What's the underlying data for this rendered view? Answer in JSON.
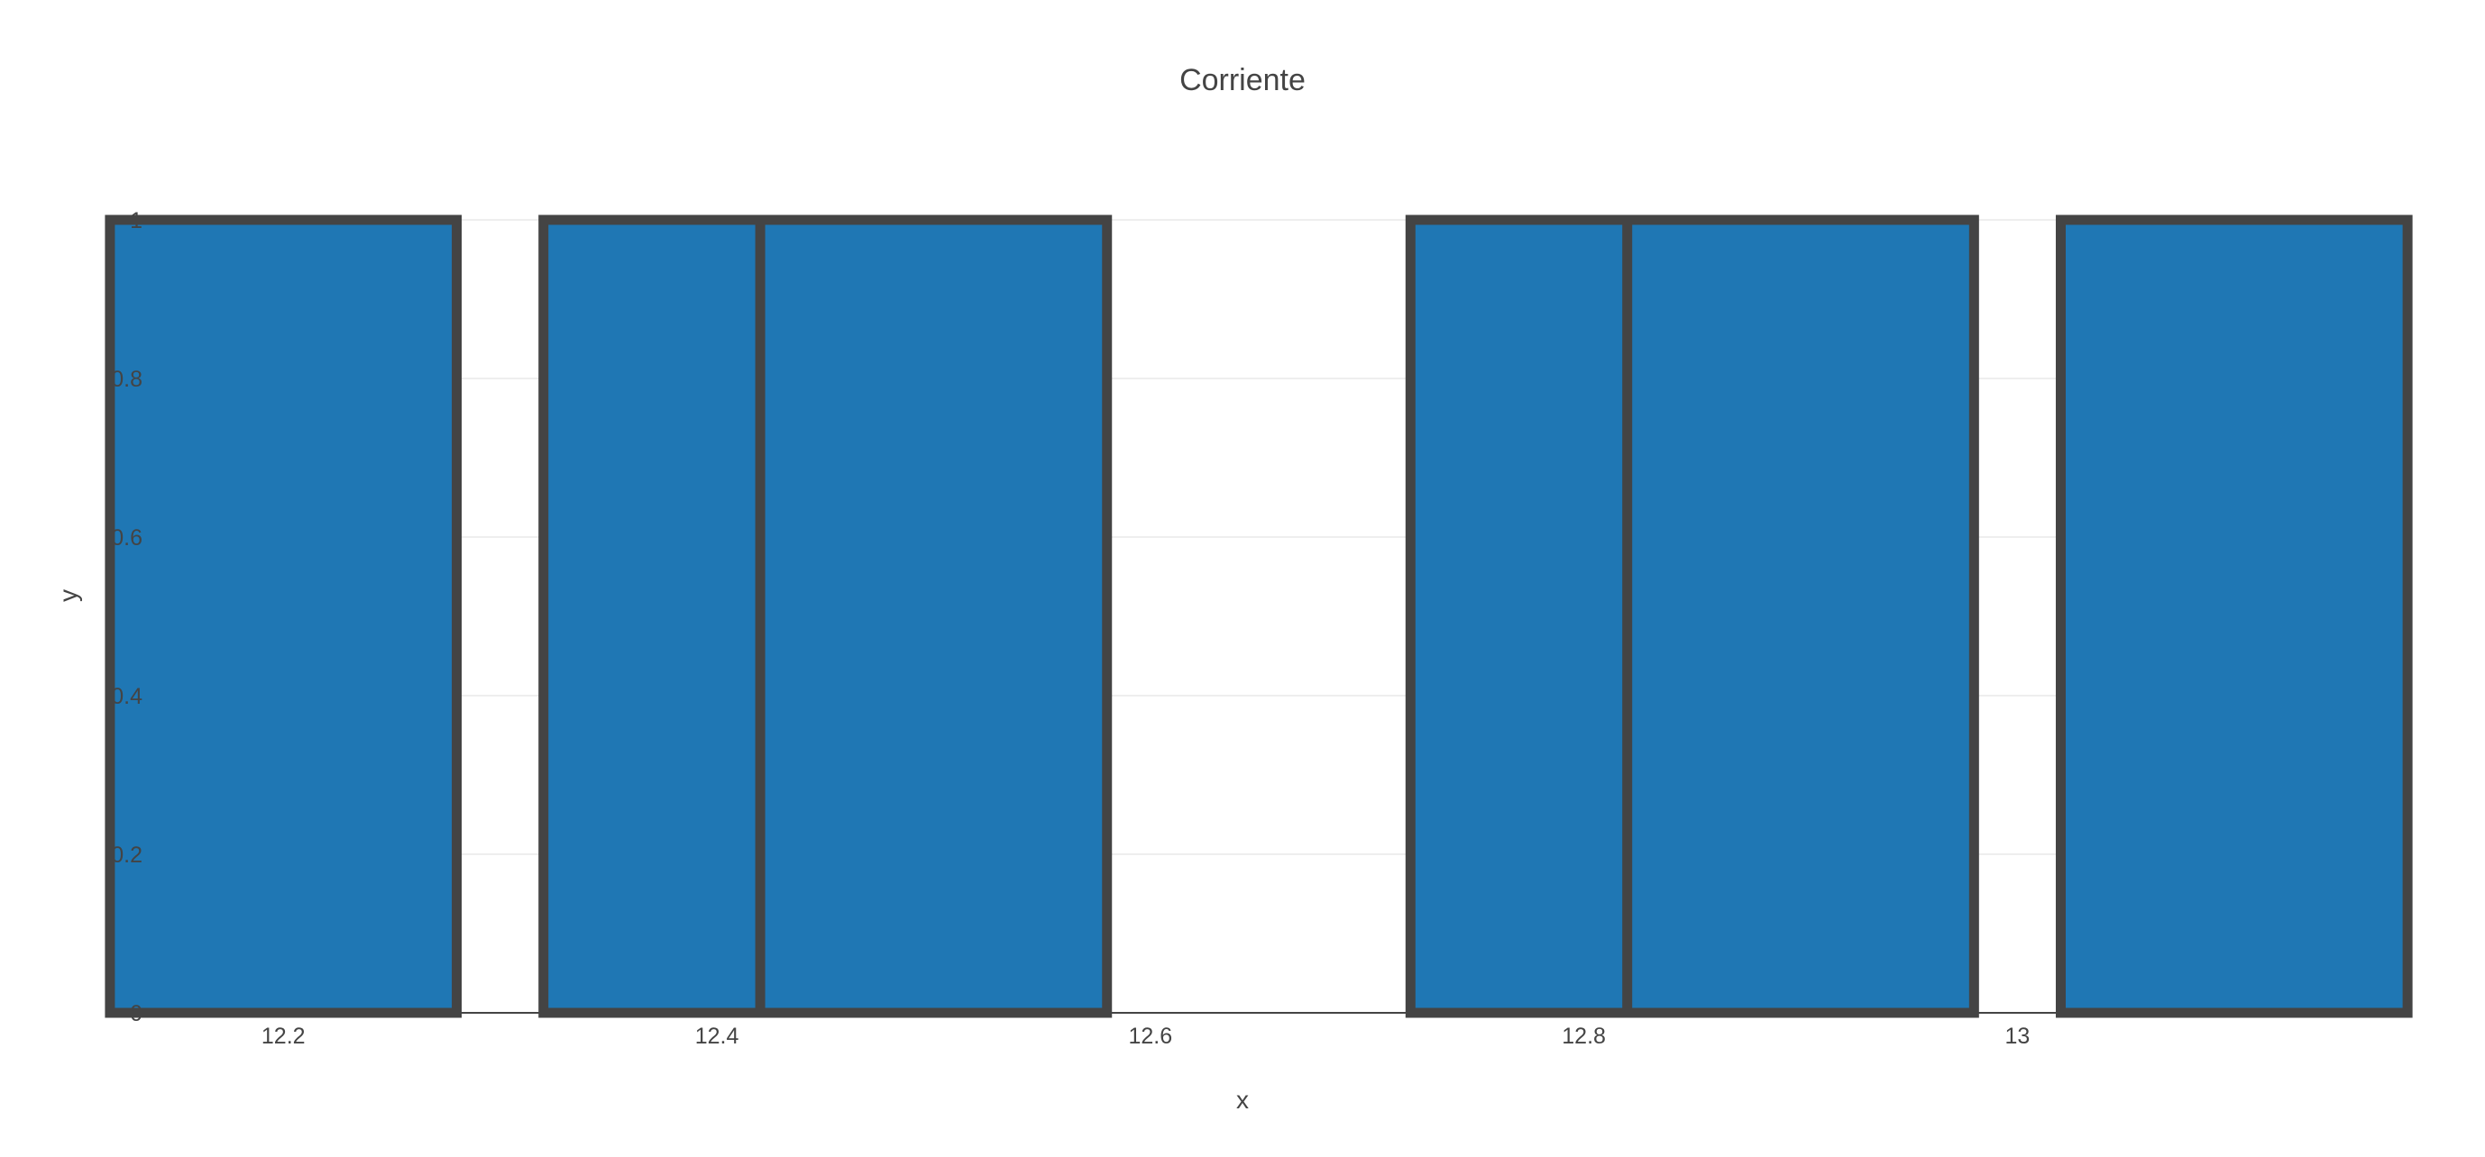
{
  "chart_data": {
    "type": "bar",
    "title": "Corriente",
    "xlabel": "x",
    "ylabel": "y",
    "x": [
      12.2,
      12.4,
      12.5,
      12.8,
      12.9,
      13.1
    ],
    "values": [
      1,
      1,
      1,
      1,
      1,
      1
    ],
    "xlim": [
      12.14,
      13.15
    ],
    "ylim": [
      0,
      1
    ],
    "xticks": [
      12.2,
      12.4,
      12.6,
      12.8,
      13
    ],
    "xtick_labels": [
      "12.2",
      "12.4",
      "12.6",
      "12.8",
      "13"
    ],
    "yticks": [
      0,
      0.2,
      0.4,
      0.6,
      0.8,
      1
    ],
    "ytick_labels": [
      "0",
      "0.2",
      "0.4",
      "0.6",
      "0.8",
      "1"
    ],
    "grid": true,
    "bar_color": "#1f77b4",
    "bar_outline_color": "#444444",
    "grid_color": "#eeeeee"
  }
}
